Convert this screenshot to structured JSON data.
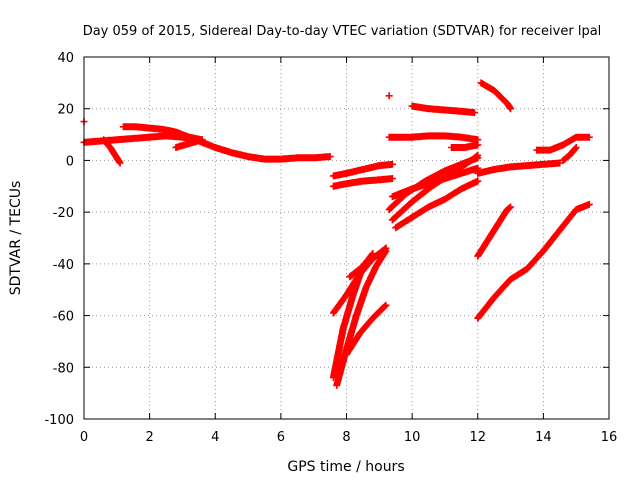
{
  "chart_data": {
    "type": "scatter",
    "title": "Day 059 of 2015, Sidereal Day-to-day VTEC variation (SDTVAR) for receiver lpal",
    "xlabel": "GPS time / hours",
    "ylabel": "SDTVAR / TECUs",
    "xlim": [
      0,
      16
    ],
    "ylim": [
      -100,
      40
    ],
    "xticks": [
      0,
      2,
      4,
      6,
      8,
      10,
      12,
      14,
      16
    ],
    "yticks": [
      -100,
      -80,
      -60,
      -40,
      -20,
      0,
      20,
      40
    ],
    "grid": true,
    "legend": "none",
    "marker_color": "#ff0000",
    "series": [
      {
        "x": [
          0.0,
          0.5,
          1.0,
          1.5,
          2.0,
          2.5,
          3.0,
          3.5,
          4.0,
          4.5,
          5.0,
          5.5,
          6.0,
          6.5,
          7.0,
          7.5
        ],
        "y": [
          7,
          7.5,
          8,
          8.5,
          9,
          9.5,
          9,
          7.5,
          5,
          3,
          1.5,
          0.5,
          0.5,
          1,
          1,
          1.5
        ]
      },
      {
        "x": [
          0.0
        ],
        "y": [
          15
        ]
      },
      {
        "x": [
          0.6,
          0.8,
          1.0,
          1.1
        ],
        "y": [
          8,
          5,
          1,
          -1
        ]
      },
      {
        "x": [
          1.2,
          1.6,
          2.0,
          2.4,
          2.8,
          3.2,
          3.6
        ],
        "y": [
          13,
          13,
          12.5,
          12,
          11,
          9,
          8
        ]
      },
      {
        "x": [
          2.8,
          3.2,
          3.6
        ],
        "y": [
          5,
          6.5,
          8
        ]
      },
      {
        "x": [
          7.6,
          8.0,
          8.5,
          9.0,
          9.4
        ],
        "y": [
          -6,
          -5,
          -3.5,
          -2,
          -1.5
        ]
      },
      {
        "x": [
          7.6,
          8.0,
          8.5,
          9.0,
          9.4
        ],
        "y": [
          -10,
          -9,
          -8,
          -7.5,
          -7
        ]
      },
      {
        "x": [
          9.3
        ],
        "y": [
          25
        ]
      },
      {
        "x": [
          10.0,
          10.5,
          11.0,
          11.5,
          11.9
        ],
        "y": [
          21,
          20,
          19.5,
          19,
          18.5
        ]
      },
      {
        "x": [
          9.3,
          10.0,
          10.5,
          11.0,
          11.5,
          12.0
        ],
        "y": [
          9,
          9,
          9.5,
          9.5,
          9,
          8
        ]
      },
      {
        "x": [
          11.2,
          11.6,
          12.0
        ],
        "y": [
          5,
          5,
          6
        ]
      },
      {
        "x": [
          9.4,
          10.0,
          10.5,
          11.0,
          11.5,
          12.0
        ],
        "y": [
          -14,
          -11,
          -9,
          -7,
          -5,
          -3
        ]
      },
      {
        "x": [
          9.3,
          9.8,
          10.4,
          11.0,
          11.6,
          12.0
        ],
        "y": [
          -19,
          -13,
          -8,
          -4,
          -1,
          1
        ]
      },
      {
        "x": [
          9.4,
          10.0,
          10.6,
          11.2,
          11.8,
          12.0
        ],
        "y": [
          -23,
          -16,
          -10,
          -5,
          0,
          2
        ]
      },
      {
        "x": [
          9.5,
          10.0,
          10.5,
          11.0,
          11.5,
          12.0
        ],
        "y": [
          -26,
          -22,
          -18,
          -15,
          -11,
          -8
        ]
      },
      {
        "x": [
          12.1,
          12.5,
          12.9,
          13.0
        ],
        "y": [
          30,
          27,
          22,
          20
        ]
      },
      {
        "x": [
          12.0,
          12.5,
          13.0,
          13.5,
          14.0,
          14.5
        ],
        "y": [
          -5,
          -3.5,
          -2.5,
          -2,
          -1.5,
          -1
        ]
      },
      {
        "x": [
          13.8,
          14.2,
          14.6,
          15.0,
          15.4
        ],
        "y": [
          4,
          4,
          6,
          9,
          9
        ]
      },
      {
        "x": [
          14.6,
          14.8,
          15.0
        ],
        "y": [
          0,
          2,
          5
        ]
      },
      {
        "x": [
          12.0,
          12.3,
          12.6,
          12.9,
          13.0
        ],
        "y": [
          -37,
          -31,
          -25,
          -19,
          -18
        ]
      },
      {
        "x": [
          12.0,
          12.5,
          13.0,
          13.5,
          14.0,
          14.5,
          15.0,
          15.4
        ],
        "y": [
          -61,
          -53,
          -46,
          -42,
          -35,
          -27,
          -19,
          -17
        ]
      },
      {
        "x": [
          7.6,
          8.0,
          8.4,
          8.8,
          9.2
        ],
        "y": [
          -59,
          -52,
          -44,
          -38,
          -34
        ]
      },
      {
        "x": [
          8.0,
          8.4,
          8.8,
          9.2
        ],
        "y": [
          -75,
          -67,
          -61,
          -56
        ]
      },
      {
        "x": [
          7.7,
          8.0,
          8.3,
          8.6,
          8.9,
          9.2
        ],
        "y": [
          -87,
          -73,
          -60,
          -49,
          -41,
          -35
        ]
      },
      {
        "x": [
          7.6,
          7.9,
          8.2,
          8.5,
          8.8
        ],
        "y": [
          -84,
          -65,
          -52,
          -41,
          -36
        ]
      },
      {
        "x": [
          8.1,
          8.5,
          8.9,
          9.2
        ],
        "y": [
          -45,
          -41,
          -37,
          -34
        ]
      }
    ]
  }
}
